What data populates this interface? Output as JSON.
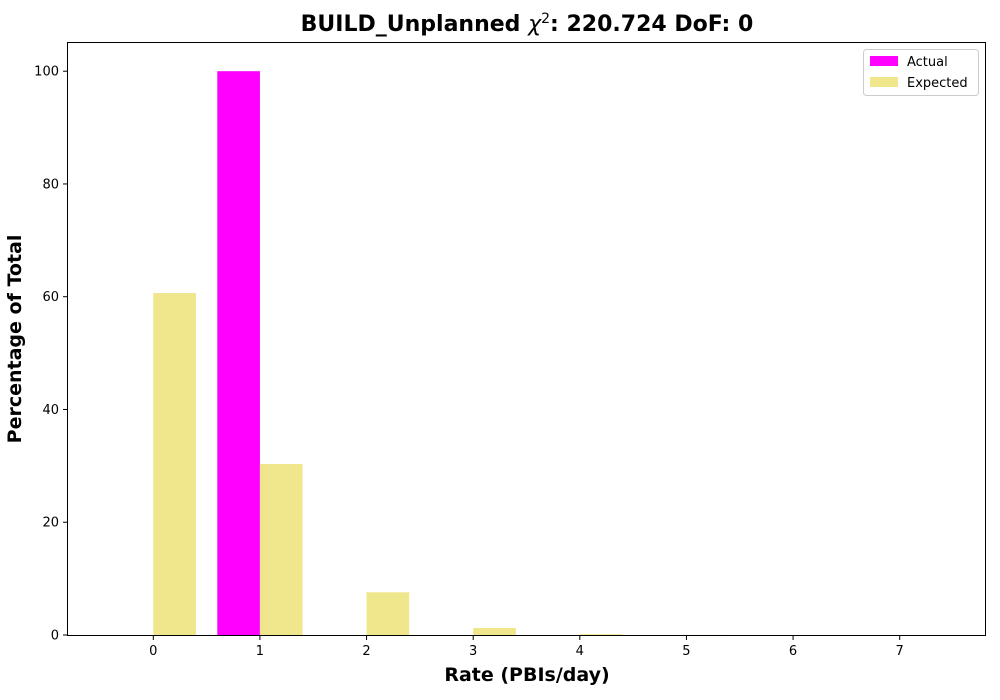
{
  "chart_data": {
    "type": "bar",
    "title": {
      "main": "BUILD_Unplanned ",
      "chi": "χ",
      "sup": "2",
      "rest": ": 220.724 DoF: 0"
    },
    "xlabel": "Rate (PBIs/day)",
    "ylabel": "Percentage of Total",
    "x": [
      0,
      1,
      2,
      3,
      4,
      5,
      6,
      7
    ],
    "xticks": [
      "0",
      "1",
      "2",
      "3",
      "4",
      "5",
      "6",
      "7"
    ],
    "yticks": [
      "0",
      "20",
      "40",
      "60",
      "80",
      "100"
    ],
    "xlim": [
      -0.8,
      7.8
    ],
    "ylim": [
      0,
      105
    ],
    "grid": false,
    "legend_position": "top-right",
    "series": [
      {
        "name": "Actual",
        "color": "#ff00ff",
        "offset": "left",
        "values": [
          0,
          100,
          0,
          0,
          0,
          0,
          0,
          0
        ]
      },
      {
        "name": "Expected",
        "color": "#f0e68c",
        "offset": "right",
        "values": [
          60.65,
          30.33,
          7.58,
          1.26,
          0.16,
          0.02,
          0.0,
          0.0
        ]
      }
    ]
  }
}
